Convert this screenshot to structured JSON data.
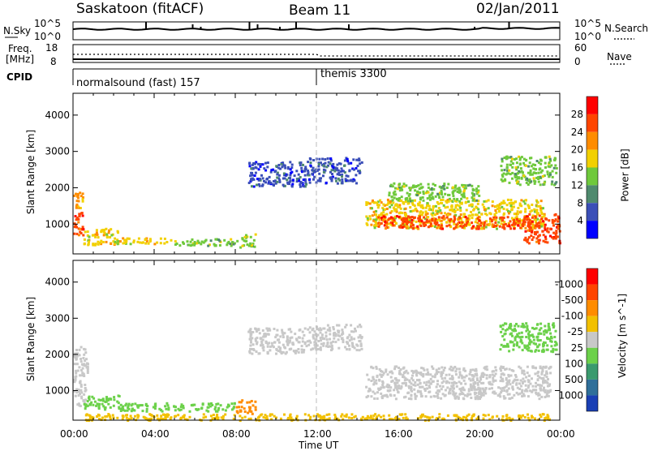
{
  "header": {
    "station": "Saskatoon (fitACF)",
    "beam": "Beam 11",
    "date": "02/Jan/2011"
  },
  "noise_panel": {
    "left_label": "N.Sky",
    "right_label": "N.Search",
    "left_ticks": [
      "10^5",
      "10^0"
    ],
    "right_ticks": [
      "10^5",
      "10^0"
    ]
  },
  "freq_panel": {
    "left_label_top": "Freq.",
    "left_label_bottom": "[MHz]",
    "right_label": "Nave",
    "left_ticks": [
      "18",
      "8"
    ],
    "right_ticks": [
      "60",
      "0"
    ]
  },
  "cpid_panel": {
    "label": "CPID",
    "segments": [
      {
        "name": "normalsound (fast) 157",
        "start_hour": 0
      },
      {
        "name": "themis 3300",
        "start_hour": 12
      }
    ]
  },
  "x_axis": {
    "label": "Time UT",
    "tick_labels": [
      "00:00",
      "04:00",
      "08:00",
      "12:00",
      "16:00",
      "20:00",
      "00:00"
    ]
  },
  "chart_data": [
    {
      "type": "heatmap",
      "title": "Power",
      "ylabel": "Slant Range [km]",
      "xlabel": "Time UT",
      "xlim_hours": [
        0,
        24
      ],
      "ylim_km": [
        180,
        4600
      ],
      "y_tick_values": [
        1000,
        2000,
        3000,
        4000
      ],
      "y_tick_labels": [
        "1000",
        "2000",
        "3000",
        "4000"
      ],
      "colorbar": {
        "label": "Power [dB]",
        "tick_labels": [
          "4",
          "8",
          "12",
          "16",
          "20",
          "24",
          "28"
        ],
        "colors": [
          "#0000ff",
          "#3b4fb8",
          "#4f8a6e",
          "#6fc93c",
          "#f2d000",
          "#ff8c00",
          "#ff4500",
          "#ff0000"
        ]
      },
      "regions": [
        {
          "t0": 0.0,
          "t1": 0.5,
          "r0": 700,
          "r1": 1400,
          "level": 6
        },
        {
          "t0": 0.0,
          "t1": 0.5,
          "r0": 1450,
          "r1": 1900,
          "level": 5
        },
        {
          "t0": 0.5,
          "t1": 2.2,
          "r0": 450,
          "r1": 900,
          "level": 4
        },
        {
          "t0": 2.0,
          "t1": 5.0,
          "r0": 480,
          "r1": 650,
          "level": 4
        },
        {
          "t0": 5.0,
          "t1": 8.2,
          "r0": 420,
          "r1": 620,
          "level": 3
        },
        {
          "t0": 8.2,
          "t1": 9.0,
          "r0": 380,
          "r1": 760,
          "level": 3
        },
        {
          "t0": 8.6,
          "t1": 11.5,
          "r0": 2050,
          "r1": 2750,
          "level": 1
        },
        {
          "t0": 11.5,
          "t1": 14.2,
          "r0": 2150,
          "r1": 2850,
          "level": 1
        },
        {
          "t0": 14.4,
          "t1": 23.2,
          "r0": 900,
          "r1": 1700,
          "level": 4
        },
        {
          "t0": 15.0,
          "t1": 22.5,
          "r0": 900,
          "r1": 1250,
          "level": 6
        },
        {
          "t0": 22.2,
          "t1": 24.0,
          "r0": 500,
          "r1": 1300,
          "level": 6
        },
        {
          "t0": 15.5,
          "t1": 20.0,
          "r0": 1650,
          "r1": 2150,
          "level": 3
        },
        {
          "t0": 21.0,
          "t1": 23.8,
          "r0": 2100,
          "r1": 2900,
          "level": 3
        }
      ]
    },
    {
      "type": "heatmap",
      "title": "Velocity",
      "ylabel": "Slant Range [km]",
      "xlabel": "Time UT",
      "xlim_hours": [
        0,
        24
      ],
      "ylim_km": [
        180,
        4600
      ],
      "y_tick_values": [
        1000,
        2000,
        3000,
        4000
      ],
      "y_tick_labels": [
        "1000",
        "2000",
        "3000",
        "4000"
      ],
      "colorbar": {
        "label": "Velocity [m s^-1]",
        "tick_labels": [
          "1000",
          "500",
          "100",
          "25",
          "-25",
          "-100",
          "-500",
          "-1000"
        ],
        "colors": [
          "#1a3fb5",
          "#2f6f9a",
          "#3a9a6e",
          "#6cd14a",
          "#c8c8c8",
          "#f2c000",
          "#ff8c00",
          "#ff4500",
          "#ff0000"
        ]
      },
      "regions": [
        {
          "t0": 0.0,
          "t1": 0.7,
          "r0": 1500,
          "r1": 2300,
          "level": 4
        },
        {
          "t0": 0.0,
          "t1": 0.6,
          "r0": 600,
          "r1": 1500,
          "level": 4
        },
        {
          "t0": 0.5,
          "t1": 2.3,
          "r0": 500,
          "r1": 900,
          "level": 3
        },
        {
          "t0": 2.2,
          "t1": 8.0,
          "r0": 450,
          "r1": 680,
          "level": 3
        },
        {
          "t0": 8.0,
          "t1": 9.0,
          "r0": 380,
          "r1": 760,
          "level": 6
        },
        {
          "t0": 8.6,
          "t1": 11.5,
          "r0": 2050,
          "r1": 2750,
          "level": 4
        },
        {
          "t0": 11.5,
          "t1": 14.2,
          "r0": 2150,
          "r1": 2850,
          "level": 4
        },
        {
          "t0": 14.4,
          "t1": 23.5,
          "r0": 800,
          "r1": 1700,
          "level": 4
        },
        {
          "t0": 21.0,
          "t1": 23.8,
          "r0": 2100,
          "r1": 2900,
          "level": 3
        },
        {
          "t0": 0.5,
          "t1": 23.5,
          "r0": 200,
          "r1": 380,
          "level": 5
        }
      ]
    }
  ]
}
